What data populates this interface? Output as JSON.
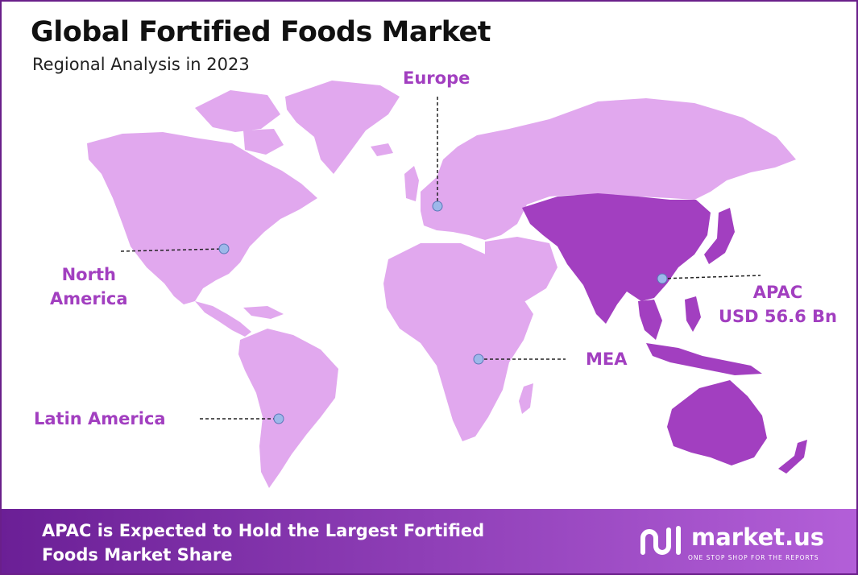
{
  "header": {
    "title": "Global Fortified Foods Market",
    "subtitle": "Regional Analysis in 2023"
  },
  "colors": {
    "land": "#e1a8ee",
    "land_highlight": "#a23fc0",
    "label": "#a23fc0",
    "marker": "#9db8ea",
    "border": "#6a1f8a",
    "footer_start": "#6b1f96",
    "footer_end": "#b35fd8"
  },
  "regions": [
    {
      "id": "europe",
      "lines": [
        "Europe"
      ],
      "highlight": false
    },
    {
      "id": "north-america",
      "lines": [
        "North",
        "America"
      ],
      "highlight": false
    },
    {
      "id": "apac",
      "lines": [
        "APAC",
        "USD 56.6 Bn"
      ],
      "highlight": true
    },
    {
      "id": "mea",
      "lines": [
        "MEA"
      ],
      "highlight": false
    },
    {
      "id": "latin-america",
      "lines": [
        "Latin America"
      ],
      "highlight": false
    }
  ],
  "footer": {
    "text": "APAC is Expected to Hold the Largest Fortified Foods Market Share",
    "brand_name": "market.us",
    "brand_tagline": "ONE STOP SHOP FOR THE REPORTS",
    "brand_icon": "market-us-logo-icon"
  }
}
